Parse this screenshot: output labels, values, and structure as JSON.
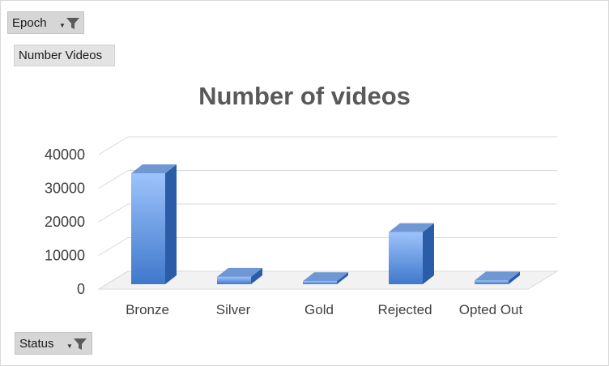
{
  "filters": {
    "report_filter_label": "Epoch",
    "values_label": "Number Videos",
    "axis_field_label": "Status"
  },
  "icons": [
    "filter-funnel-icon",
    "dropdown-arrow-icon"
  ],
  "colors": {
    "bar_front_light": "#9dc3fb",
    "bar_front_dark": "#3f78cc",
    "bar_side": "#2a5ca8",
    "bar_top": "#6f97d4"
  },
  "chart_data": {
    "type": "bar",
    "title": "Number of videos",
    "categories": [
      "Bronze",
      "Silver",
      "Gold",
      "Rejected",
      "Opted Out"
    ],
    "values": [
      33000,
      2200,
      900,
      15500,
      1100
    ],
    "yticks": [
      0,
      10000,
      20000,
      30000,
      40000
    ],
    "ylim": [
      0,
      40000
    ],
    "grid": true,
    "legend": false,
    "style": "3d-column"
  }
}
